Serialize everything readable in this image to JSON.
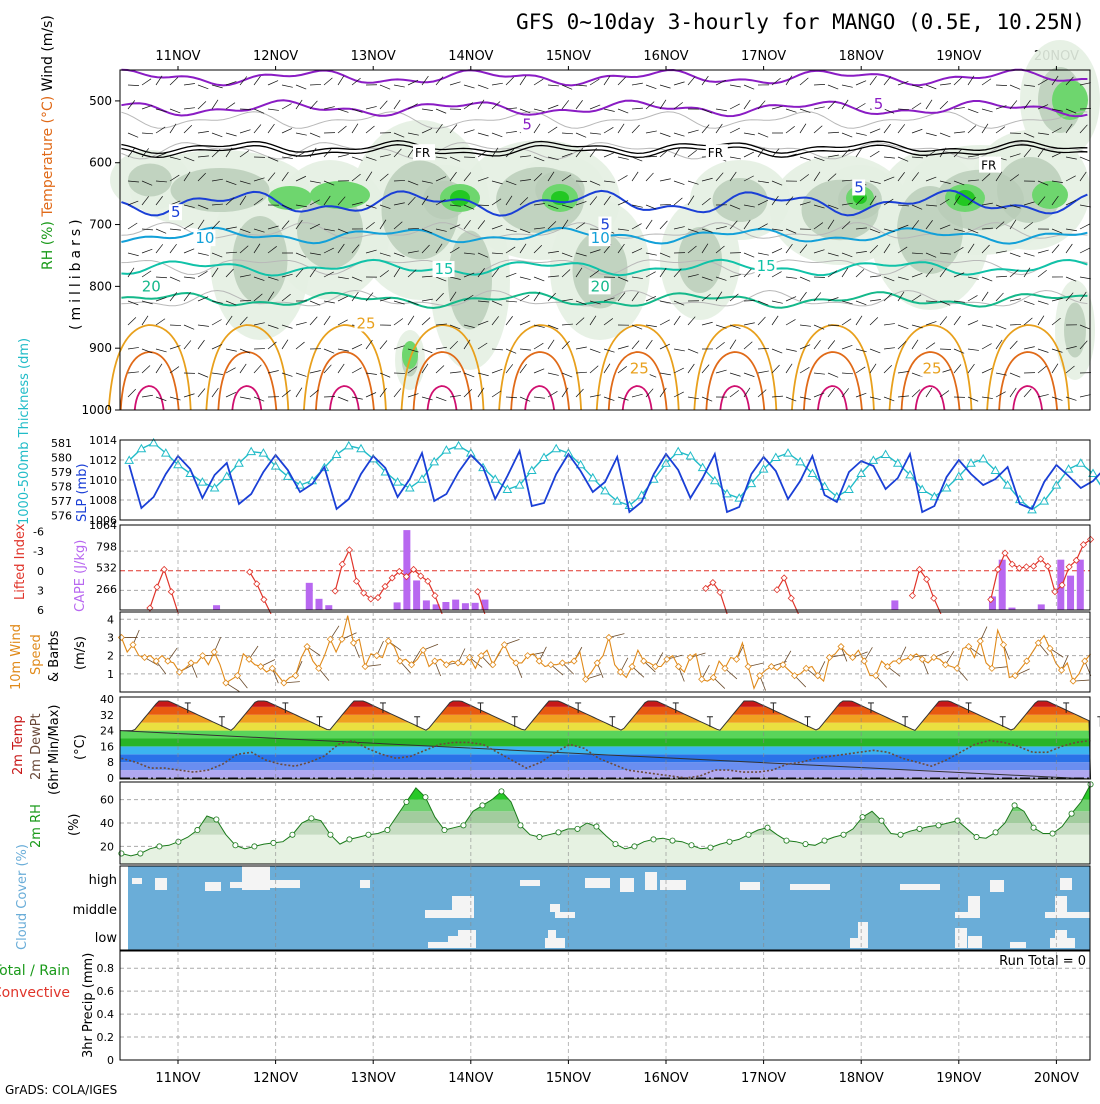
{
  "title": "GFS 0~10day 3-hourly for MANGO (0.5E, 10.25N)",
  "credit": "GrADS: COLA/IGES",
  "date_labels": [
    "11NOV",
    "12NOV",
    "13NOV",
    "14NOV",
    "15NOV",
    "16NOV",
    "17NOV",
    "18NOV",
    "19NOV",
    "20NOV"
  ],
  "colors": {
    "purple": "#8a1cc4",
    "blue": "#1a3fd6",
    "lightblue": "#12a0d8",
    "teal": "#10c2a8",
    "seagreen": "#14b88a",
    "orange": "#e8a01c",
    "darkorange": "#e06a18",
    "magenta": "#d01070",
    "slp": "#1a3fd6",
    "thick": "#22bcc8",
    "li": "#e0342a",
    "cape": "#b868f0",
    "wind": "#e08a1a",
    "rh": "#1a9a1a",
    "cloud": "#6aadd8",
    "cloudwhite": "#f4f4f4"
  },
  "chart_data": [
    {
      "type": "contour",
      "panel": "upper-air",
      "ylabel_parts": [
        "Wind (m/s)",
        "Temperature (°C)",
        "RH (%)"
      ],
      "ylabel_unit": "(millibars)",
      "yticks": [
        500,
        600,
        700,
        800,
        900,
        1000
      ],
      "ylim": [
        450,
        1000
      ],
      "contour_labels": [
        {
          "text": "5",
          "x_day": 3.6,
          "p": 538,
          "color": "purple"
        },
        {
          "text": "5",
          "x_day": 7.2,
          "p": 505,
          "color": "purple"
        },
        {
          "text": "FR",
          "x_day": 2.5,
          "p": 583,
          "color": "black"
        },
        {
          "text": "FR",
          "x_day": 5.5,
          "p": 583,
          "color": "black"
        },
        {
          "text": "FR",
          "x_day": 8.3,
          "p": 603,
          "color": "black"
        },
        {
          "text": "5",
          "x_day": 0.0,
          "p": 680,
          "color": "blue"
        },
        {
          "text": "5",
          "x_day": 4.4,
          "p": 700,
          "color": "blue"
        },
        {
          "text": "5",
          "x_day": 7.0,
          "p": 640,
          "color": "blue"
        },
        {
          "text": "10",
          "x_day": 0.25,
          "p": 722,
          "color": "lightblue"
        },
        {
          "text": "10",
          "x_day": 4.3,
          "p": 722,
          "color": "lightblue"
        },
        {
          "text": "15",
          "x_day": 2.7,
          "p": 772,
          "color": "teal"
        },
        {
          "text": "15",
          "x_day": 6.0,
          "p": 767,
          "color": "teal"
        },
        {
          "text": "20",
          "x_day": -0.3,
          "p": 800,
          "color": "seagreen"
        },
        {
          "text": "20",
          "x_day": 4.3,
          "p": 800,
          "color": "seagreen"
        },
        {
          "text": "25",
          "x_day": 1.9,
          "p": 860,
          "color": "orange"
        },
        {
          "text": "25",
          "x_day": 4.7,
          "p": 933,
          "color": "orange"
        },
        {
          "text": "25",
          "x_day": 7.7,
          "p": 933,
          "color": "orange"
        }
      ],
      "isotherm_levels": [
        {
          "name": "purple-top",
          "color": "purple",
          "p": 462
        },
        {
          "name": "purple-5",
          "color": "purple",
          "p": 512
        },
        {
          "name": "FR",
          "color": "black",
          "p": 578
        },
        {
          "name": "blue-5",
          "color": "blue",
          "p": 665
        },
        {
          "name": "lightblue-10",
          "color": "lightblue",
          "p": 718
        },
        {
          "name": "teal-15",
          "color": "teal",
          "p": 770
        },
        {
          "name": "seagreen-20",
          "color": "seagreen",
          "p": 822
        }
      ]
    },
    {
      "type": "line",
      "panel": "slp-thickness",
      "ylabel_left": "1000-500mb Thickness (dm)",
      "ylabel_right": "SLP (mb)",
      "yticks_thickness": [
        576,
        577,
        578,
        579,
        580,
        581
      ],
      "yticks_slp": [
        1006,
        1008,
        1010,
        1012,
        1014
      ],
      "series": [
        {
          "name": "SLP",
          "axis": "slp",
          "values": [
            1011.5,
            1007.2,
            1008.3,
            1010.6,
            1012.4,
            1011.1,
            1008.2,
            1010.5,
            1011.7,
            1007.6,
            1008.6,
            1010.8,
            1012.5,
            1011.0,
            1008.8,
            1009.6,
            1011.3,
            1007.1,
            1008.1,
            1010.6,
            1012.4,
            1011.2,
            1008.3,
            1010.1,
            1012.7,
            1007.9,
            1008.6,
            1010.8,
            1012.5,
            1011.3,
            1008.1,
            1010.4,
            1012.9,
            1007.4,
            1007.7,
            1010.6,
            1012.6,
            1010.9,
            1008.8,
            1009.8,
            1012.3,
            1006.8,
            1007.8,
            1010.6,
            1012.6,
            1011.0,
            1008.2,
            1010.2,
            1012.6,
            1006.8,
            1007.3,
            1010.6,
            1012.3,
            1010.9,
            1008.1,
            1009.9,
            1012.4,
            1008.5,
            1007.8,
            1010.8,
            1011.9,
            1011.4,
            1009.1,
            1010.2,
            1012.6,
            1006.8,
            1007.4,
            1010.3,
            1012.0,
            1010.6,
            1009.5,
            1010.1,
            1011.3,
            1007.6,
            1007.1,
            1009.8,
            1011.5,
            1010.4,
            1009.2,
            1009.9,
            1011.2,
            1006.8
          ]
        },
        {
          "name": "Thickness",
          "axis": "thickness",
          "values": [
            579.8,
            580.6,
            581.0,
            580.3,
            579.5,
            578.9,
            578.3,
            577.9,
            578.7,
            579.6,
            580.4,
            580.3,
            579.4,
            578.7,
            578.1,
            578.4,
            579.3,
            580.2,
            580.8,
            580.6,
            579.9,
            579.0,
            578.3,
            577.9,
            578.5,
            579.7,
            580.5,
            580.8,
            580.3,
            579.3,
            578.5,
            577.8,
            578.1,
            579.1,
            580.0,
            580.6,
            580.3,
            579.5,
            578.6,
            577.7,
            577.0,
            576.7,
            577.4,
            578.5,
            579.6,
            580.4,
            580.1,
            579.3,
            578.4,
            577.5,
            577.2,
            578.2,
            579.2,
            580.0,
            580.3,
            579.7,
            578.9,
            578.0,
            577.3,
            577.8,
            578.9,
            579.8,
            580.2,
            579.6,
            578.8,
            577.8,
            577.3,
            577.9,
            578.7,
            579.6,
            579.9,
            579.1,
            578.1,
            577.1,
            576.4,
            577.0,
            578.1,
            579.2,
            579.6,
            578.9,
            577.6,
            576.8
          ]
        }
      ]
    },
    {
      "type": "bar-line",
      "panel": "cape-li",
      "ylabel_left": "Lifted Index",
      "ylabel_right": "CAPE (J/kg)",
      "yticks_li": [
        6,
        3,
        0,
        -3,
        -6
      ],
      "yticks_cape": [
        266,
        532,
        798,
        1064
      ],
      "li_values": [
        6,
        6,
        6,
        6,
        5.7,
        2.5,
        -0.2,
        3.2,
        6,
        6,
        6,
        6,
        6,
        6,
        6,
        6,
        6,
        6,
        0.2,
        2.0,
        4.4,
        6,
        6,
        6,
        6,
        6,
        6,
        6,
        6,
        6,
        3.1,
        -1.0,
        -3.2,
        1.6,
        3.4,
        4.3,
        4.1,
        2.4,
        1.1,
        0.1,
        0.9,
        -0.2,
        0.8,
        1.6,
        3.8,
        6,
        6,
        6,
        6,
        6,
        3.2,
        6,
        6,
        6,
        6,
        6,
        6,
        6,
        6,
        6,
        6,
        6,
        6,
        6,
        6,
        6,
        6,
        6,
        6,
        6,
        6,
        6,
        6,
        6,
        6,
        6,
        6,
        6,
        6,
        6,
        6,
        6,
        2.7,
        1.8,
        3.3,
        6,
        6,
        6,
        6,
        6,
        6,
        6,
        2.9,
        1.1,
        4.2,
        6,
        6,
        6,
        6,
        6,
        6,
        6,
        6,
        6,
        6,
        6,
        6,
        6,
        6,
        6,
        6,
        3.8,
        -0.2,
        1.3,
        4.2,
        6,
        6,
        6,
        6,
        6,
        6,
        6,
        4.4,
        -0.2,
        -2.7,
        -1.0,
        -0.4,
        -0.6,
        -0.7,
        -1.8,
        -0.7,
        3.2,
        2.2,
        -0.6,
        -1.6,
        -4.0,
        -4.8
      ],
      "li_note": "values at 3-hour steps",
      "cape_bars": [
        {
          "t": 0.4,
          "v": 60
        },
        {
          "t": 1.35,
          "v": 340
        },
        {
          "t": 1.45,
          "v": 140
        },
        {
          "t": 1.55,
          "v": 60
        },
        {
          "t": 2.25,
          "v": 95
        },
        {
          "t": 2.35,
          "v": 1000
        },
        {
          "t": 2.45,
          "v": 370
        },
        {
          "t": 2.55,
          "v": 120
        },
        {
          "t": 2.65,
          "v": 70
        },
        {
          "t": 2.75,
          "v": 100
        },
        {
          "t": 2.85,
          "v": 130
        },
        {
          "t": 2.95,
          "v": 85
        },
        {
          "t": 3.05,
          "v": 90
        },
        {
          "t": 3.15,
          "v": 130
        },
        {
          "t": 7.35,
          "v": 120
        },
        {
          "t": 8.35,
          "v": 170
        },
        {
          "t": 8.45,
          "v": 630
        },
        {
          "t": 8.55,
          "v": 30
        },
        {
          "t": 8.85,
          "v": 70
        },
        {
          "t": 9.05,
          "v": 630
        },
        {
          "t": 9.15,
          "v": 430
        },
        {
          "t": 9.25,
          "v": 630
        }
      ]
    },
    {
      "type": "line",
      "panel": "wind",
      "ylabel": "10m Wind Speed & Barbs (m/s)",
      "yticks": [
        1,
        2,
        3,
        4
      ],
      "values": [
        3.0,
        2.2,
        2.6,
        2.0,
        1.9,
        2.0,
        1.7,
        2.0,
        1.7,
        1.6,
        1.1,
        1.3,
        1.6,
        1.6,
        2.0,
        1.5,
        2.2,
        1.5,
        0.5,
        0.7,
        0.9,
        2.1,
        1.8,
        1.5,
        1.4,
        1.1,
        1.3,
        0.9,
        0.5,
        0.8,
        0.9,
        1.9,
        2.5,
        1.7,
        1.3,
        2.0,
        2.9,
        2.2,
        2.9,
        4.2,
        2.7,
        2.9,
        1.4,
        2.1,
        2.0,
        1.9,
        2.8,
        2.5,
        1.7,
        1.8,
        1.5,
        1.8,
        2.3,
        1.4,
        1.7,
        1.8,
        1.5,
        1.7,
        1.6,
        1.5,
        1.9,
        1.3,
        2.0,
        2.3,
        1.5,
        2.1,
        2.6,
        1.9,
        1.6,
        1.6,
        2.0,
        2.1,
        1.7,
        1.4,
        1.5,
        1.5,
        1.6,
        1.6,
        1.7,
        2.2,
        0.7,
        1.1,
        1.6,
        2.0,
        3.0,
        1.5,
        1.1,
        0.8,
        1.4,
        2.3,
        1.7,
        1.6,
        1.4,
        1.4,
        1.8,
        2.0,
        1.4,
        1.1,
        1.9,
        2.1,
        0.7,
        0.6,
        0.8,
        1.7,
        1.3,
        1.9,
        1.8,
        2.7,
        1.4,
        0.2,
        0.9,
        1.2,
        1.4,
        1.2,
        1.5,
        1.2,
        0.9,
        1.0,
        1.3,
        1.4,
        0.9,
        0.6,
        1.9,
        2.1,
        2.5,
        2.1,
        1.9,
        2.3,
        1.7,
        0.9,
        0.9,
        1.7,
        1.4,
        1.7,
        1.7,
        1.8,
        1.9,
        2.1,
        1.8,
        1.6,
        1.9,
        1.8,
        1.5,
        1.4,
        1.3,
        2.4,
        2.5,
        1.9,
        2.8,
        1.6,
        1.3,
        3.4,
        2.6,
        0.8,
        0.9,
        1.3,
        1.7,
        2.2,
        2.7,
        3.1,
        2.4,
        1.6,
        1.2,
        1.6,
        0.6,
        1.0,
        1.7,
        2.1
      ]
    },
    {
      "type": "area",
      "panel": "temperature",
      "ylabel": "2m Temp 2m DewPt (6hr Min/Max) (°C)",
      "yticks": [
        0,
        8,
        16,
        24,
        32,
        40
      ],
      "temp_min": 24,
      "temp_max": 39,
      "dewpoint": [
        10,
        8,
        5,
        5,
        4,
        3,
        4,
        7,
        12,
        13,
        9,
        7,
        6,
        8,
        11,
        17,
        19,
        15,
        12,
        10,
        11,
        14,
        17,
        18,
        18,
        17,
        13,
        9,
        5,
        8,
        13,
        17,
        15,
        10,
        7,
        4,
        3,
        2,
        1,
        0,
        1,
        4,
        4,
        3,
        3,
        4,
        7,
        8,
        10,
        11,
        12,
        13,
        14,
        13,
        10,
        8,
        6,
        9,
        13,
        17,
        19,
        18,
        16,
        13,
        13,
        16,
        18,
        19
      ]
    },
    {
      "type": "area",
      "panel": "rh",
      "ylabel": "2m RH (%)",
      "yticks": [
        20,
        40,
        60
      ],
      "values": [
        14,
        12,
        14,
        18,
        20,
        21,
        24,
        28,
        34,
        46,
        43,
        30,
        21,
        18,
        20,
        22,
        23,
        24,
        30,
        40,
        44,
        42,
        30,
        22,
        26,
        28,
        30,
        31,
        34,
        46,
        58,
        70,
        62,
        45,
        34,
        36,
        38,
        50,
        55,
        60,
        67,
        58,
        38,
        30,
        28,
        30,
        32,
        35,
        35,
        40,
        37,
        29,
        22,
        18,
        20,
        24,
        26,
        27,
        25,
        24,
        21,
        18,
        19,
        22,
        24,
        26,
        30,
        34,
        36,
        30,
        25,
        24,
        22,
        21,
        25,
        28,
        30,
        35,
        45,
        50,
        42,
        31,
        30,
        33,
        35,
        37,
        38,
        40,
        42,
        35,
        28,
        27,
        32,
        40,
        55,
        50,
        36,
        31,
        31,
        37,
        48,
        58,
        73
      ]
    },
    {
      "type": "bar",
      "panel": "cloud",
      "ylabel": "Cloud Cover (%)",
      "rows": [
        "high",
        "middle",
        "low"
      ]
    },
    {
      "type": "bar",
      "panel": "precip",
      "ylabel": "3hr Precip (mm)",
      "legend": [
        "Total / Rain",
        "Convective"
      ],
      "yticks": [
        0,
        0.2,
        0.4,
        0.6,
        0.8
      ],
      "run_total_label": "Run Total = 0",
      "values": []
    }
  ]
}
